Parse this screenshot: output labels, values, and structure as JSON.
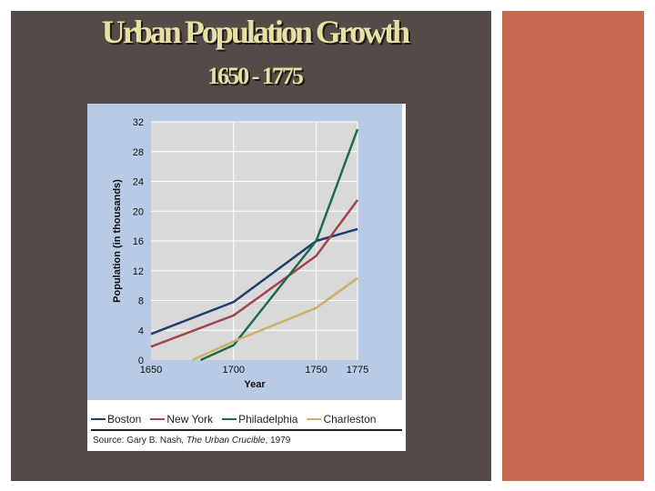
{
  "title": "Urban Population Growth",
  "subtitle": "1650 - 1775",
  "source": {
    "prefix": "Source: Gary B. Nash, ",
    "work": "The Urban Crucible",
    "suffix": ", 1979"
  },
  "colors": {
    "slide_background": "#544a47",
    "accent_panel": "#c6694f",
    "title_text": "#e8dfa2",
    "chart_frame": "#b9cbe4",
    "plot_background": "#d9d9d9"
  },
  "chart_data": {
    "type": "line",
    "title": "",
    "xlabel": "Year",
    "ylabel": "Population (in thousands)",
    "x_ticks": [
      1650,
      1700,
      1750,
      1775
    ],
    "y_ticks": [
      0,
      4,
      8,
      12,
      16,
      20,
      24,
      28,
      32
    ],
    "xlim": [
      1650,
      1775
    ],
    "ylim": [
      0,
      32
    ],
    "grid": true,
    "legend_position": "bottom",
    "series": [
      {
        "name": "Boston",
        "color": "#1f3f6e",
        "x": [
          1650,
          1700,
          1750,
          1775
        ],
        "y": [
          3.5,
          7.8,
          16.0,
          17.6
        ]
      },
      {
        "name": "New York",
        "color": "#a0454e",
        "x": [
          1650,
          1700,
          1750,
          1775
        ],
        "y": [
          1.8,
          6.0,
          14.0,
          21.5
        ]
      },
      {
        "name": "Philadelphia",
        "color": "#1e6b4a",
        "x": [
          1680,
          1700,
          1750,
          1775
        ],
        "y": [
          0.0,
          2.0,
          16.0,
          31.0
        ]
      },
      {
        "name": "Charleston",
        "color": "#c9b36a",
        "x": [
          1675,
          1700,
          1750,
          1775
        ],
        "y": [
          0.0,
          2.5,
          7.0,
          11.0
        ]
      }
    ]
  }
}
